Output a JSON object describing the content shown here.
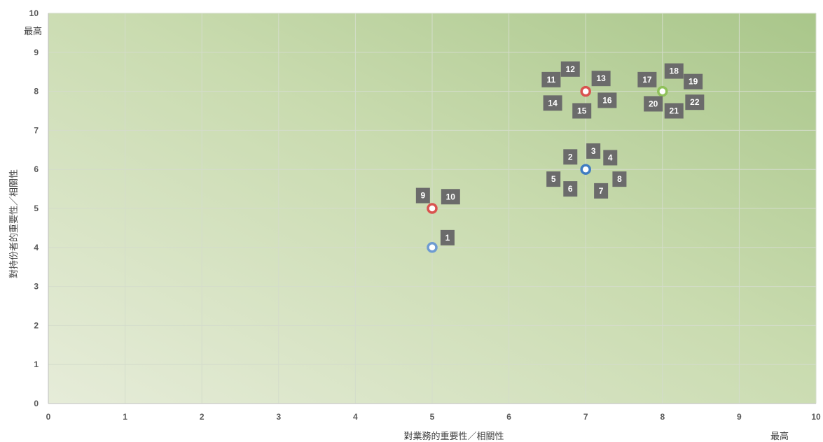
{
  "chart_data": {
    "type": "scatter",
    "xlabel": "對業務的重要性／相關性",
    "ylabel": "對持份者的重要性／相關性",
    "x_max_label": "最高",
    "y_max_label": "最高",
    "xlim": [
      0,
      10
    ],
    "ylim": [
      0,
      10
    ],
    "x_ticks": [
      "0",
      "1",
      "2",
      "3",
      "4",
      "5",
      "6",
      "7",
      "8",
      "9",
      "10"
    ],
    "y_ticks": [
      "0",
      "1",
      "2",
      "3",
      "4",
      "5",
      "6",
      "7",
      "8",
      "9",
      "10"
    ],
    "grid": true,
    "background": "green-gradient",
    "points": [
      {
        "x": 5,
        "y": 4,
        "color": "#6e9bd1"
      },
      {
        "x": 5,
        "y": 5,
        "color": "#d9534f"
      },
      {
        "x": 7,
        "y": 6,
        "color": "#3f7cc2"
      },
      {
        "x": 7,
        "y": 8,
        "color": "#d9534f"
      },
      {
        "x": 8,
        "y": 8,
        "color": "#8fc15a"
      }
    ],
    "labels": [
      {
        "text": "1",
        "x": 5.2,
        "y": 4.25
      },
      {
        "text": "9",
        "x": 4.88,
        "y": 5.33
      },
      {
        "text": "10",
        "x": 5.24,
        "y": 5.3
      },
      {
        "text": "2",
        "x": 6.8,
        "y": 6.32
      },
      {
        "text": "3",
        "x": 7.1,
        "y": 6.47
      },
      {
        "text": "4",
        "x": 7.32,
        "y": 6.3
      },
      {
        "text": "5",
        "x": 6.58,
        "y": 5.75
      },
      {
        "text": "6",
        "x": 6.8,
        "y": 5.5
      },
      {
        "text": "7",
        "x": 7.2,
        "y": 5.45
      },
      {
        "text": "8",
        "x": 7.44,
        "y": 5.75
      },
      {
        "text": "11",
        "x": 6.55,
        "y": 8.3
      },
      {
        "text": "12",
        "x": 6.8,
        "y": 8.57
      },
      {
        "text": "13",
        "x": 7.2,
        "y": 8.33
      },
      {
        "text": "14",
        "x": 6.57,
        "y": 7.7
      },
      {
        "text": "15",
        "x": 6.95,
        "y": 7.5
      },
      {
        "text": "16",
        "x": 7.28,
        "y": 7.77
      },
      {
        "text": "17",
        "x": 7.8,
        "y": 8.3
      },
      {
        "text": "18",
        "x": 8.15,
        "y": 8.52
      },
      {
        "text": "19",
        "x": 8.4,
        "y": 8.25
      },
      {
        "text": "20",
        "x": 7.88,
        "y": 7.68
      },
      {
        "text": "21",
        "x": 8.15,
        "y": 7.5
      },
      {
        "text": "22",
        "x": 8.42,
        "y": 7.72
      }
    ]
  }
}
